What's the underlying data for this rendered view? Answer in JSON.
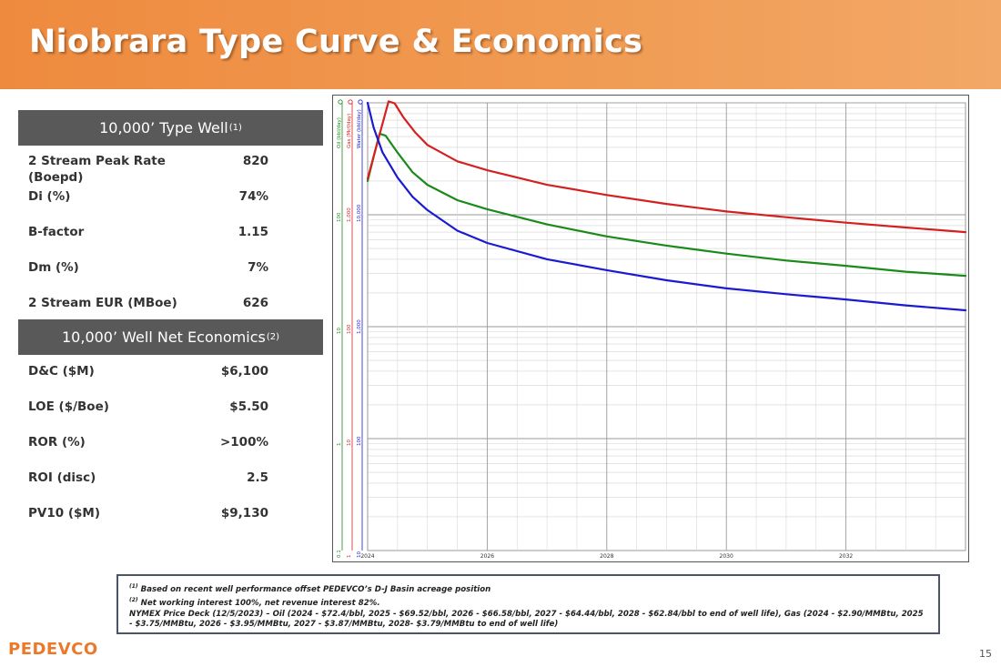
{
  "header": {
    "title": "Niobrara Type Curve & Economics"
  },
  "type_well": {
    "title": "10,000’ Type Well",
    "footnote_mark": "(1)",
    "rows": [
      {
        "label": "2 Stream Peak Rate (Boepd)",
        "value": "820"
      },
      {
        "label": "Di (%)",
        "value": "74%"
      },
      {
        "label": "B-factor",
        "value": "1.15"
      },
      {
        "label": "Dm (%)",
        "value": "7%"
      },
      {
        "label": "2 Stream EUR (MBoe)",
        "value": "626"
      }
    ]
  },
  "economics": {
    "title": "10,000’ Well Net Economics",
    "footnote_mark": "(2)",
    "rows": [
      {
        "label": "D&C ($M)",
        "value": "$6,100"
      },
      {
        "label": "LOE ($/Boe)",
        "value": "$5.50"
      },
      {
        "label": "ROR (%)",
        "value": ">100%"
      },
      {
        "label": "ROI (disc)",
        "value": "2.5"
      },
      {
        "label": "PV10 ($M)",
        "value": "$9,130"
      }
    ]
  },
  "chart_data": {
    "type": "line",
    "log_scale": true,
    "grid": true,
    "x_tick_labels": [
      "2024",
      "2026",
      "2028",
      "2030",
      "2032"
    ],
    "x_range": [
      2024.0,
      2034.0
    ],
    "y_axes": [
      {
        "label": "Oil (bbl/day)",
        "color": "#1a8a1a",
        "ticks": [
          "0.1",
          "1",
          "10",
          "100"
        ]
      },
      {
        "label": "Gas (Mcf/day)",
        "color": "#d42020",
        "ticks": [
          "1",
          "10",
          "100",
          "1,000"
        ]
      },
      {
        "label": "Water (bbl/day)",
        "color": "#1a1ad0",
        "ticks": [
          "10",
          "100",
          "1,000",
          "10,000"
        ]
      }
    ],
    "oil_axis_range": [
      0.1,
      1000
    ],
    "series": [
      {
        "name": "Oil (bbl/day)",
        "color": "#1a8a1a",
        "x": [
          2024.0,
          2024.1,
          2024.2,
          2024.3,
          2024.5,
          2024.75,
          2025.0,
          2025.5,
          2026.0,
          2027.0,
          2028.0,
          2029.0,
          2030.0,
          2031.0,
          2032.0,
          2033.0,
          2034.0
        ],
        "y": [
          200,
          330,
          530,
          510,
          360,
          240,
          185,
          135,
          112,
          82,
          64,
          53,
          45,
          39,
          35,
          31,
          28.5
        ]
      },
      {
        "name": "Gas (Mcf/day)",
        "color": "#d42020",
        "x": [
          2024.0,
          2024.2,
          2024.35,
          2024.45,
          2024.6,
          2024.8,
          2025.0,
          2025.5,
          2026.0,
          2027.0,
          2028.0,
          2029.0,
          2030.0,
          2031.0,
          2032.0,
          2033.0,
          2034.0
        ],
        "y": [
          210,
          520,
          1030,
          990,
          740,
          540,
          420,
          300,
          250,
          185,
          150,
          125,
          107,
          95,
          85,
          77,
          70
        ]
      },
      {
        "name": "Water (bbl/day)",
        "color": "#1a1ad0",
        "x": [
          2024.0,
          2024.1,
          2024.25,
          2024.5,
          2024.75,
          2025.0,
          2025.5,
          2026.0,
          2027.0,
          2028.0,
          2029.0,
          2030.0,
          2031.0,
          2032.0,
          2033.0,
          2034.0
        ],
        "y": [
          1000,
          600,
          360,
          215,
          145,
          110,
          72,
          56,
          40,
          32,
          26,
          22,
          19.5,
          17.5,
          15.5,
          14
        ]
      }
    ]
  },
  "notes": {
    "line1_mark": "(1)",
    "line1": "Based on recent well performance offset PEDEVCO’s D-J Basin acreage position",
    "line2_mark": "(2)",
    "line2": "Net working interest 100%, net revenue interest 82%.",
    "line3": "NYMEX Price Deck (12/5/2023) – Oil (2024 - $72.4/bbl, 2025 - $69.52/bbl, 2026 - $66.58/bbl, 2027 - $64.44/bbl, 2028 - $62.84/bbl to end of well life), Gas (2024 - $2.90/MMBtu, 2025 - $3.75/MMBtu, 2026 - $3.95/MMBtu, 2027 - $3.87/MMBtu, 2028- $3.79/MMBtu to end of well life)"
  },
  "footer": {
    "logo": "PEDEVCO",
    "page": "15"
  }
}
